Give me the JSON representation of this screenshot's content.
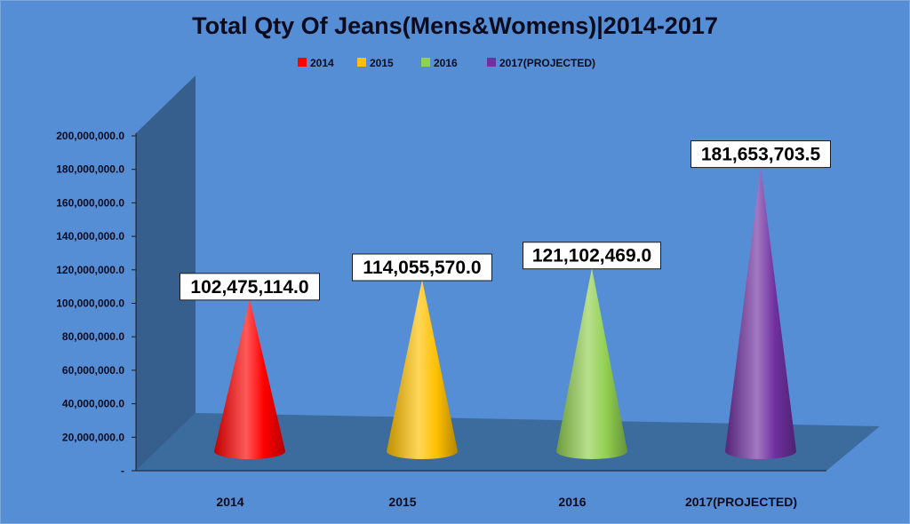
{
  "chart_data": {
    "type": "bar",
    "shape": "cone",
    "title": "Total Qty Of Jeans(Mens&Womens)|2014-2017",
    "categories": [
      "2014",
      "2015",
      "2016",
      "2017(PROJECTED)"
    ],
    "values": [
      102475114.0,
      114055570.0,
      121102469.0,
      181653703.5
    ],
    "data_labels": [
      "102,475,114.0",
      "114,055,570.0",
      "121,102,469.0",
      "181,653,703.5"
    ],
    "legend": [
      "2014",
      "2015",
      "2016",
      "2017(PROJECTED)"
    ],
    "legend_position": "top",
    "colors": [
      "#ff0000",
      "#ffc000",
      "#92d050",
      "#7030a0"
    ],
    "y_ticks": [
      "-",
      "20,000,000.0",
      "40,000,000.0",
      "60,000,000.0",
      "80,000,000.0",
      "100,000,000.0",
      "120,000,000.0",
      "140,000,000.0",
      "160,000,000.0",
      "180,000,000.0",
      "200,000,000.0"
    ],
    "ylim": [
      0,
      200000000
    ],
    "xlabel": "",
    "ylabel": "",
    "grid": false
  }
}
